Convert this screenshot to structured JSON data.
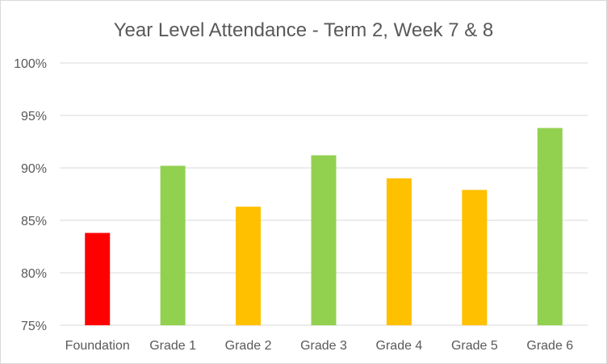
{
  "chart_data": {
    "type": "bar",
    "title": "Year Level Attendance - Term 2, Week 7 & 8",
    "xlabel": "",
    "ylabel": "",
    "categories": [
      "Foundation",
      "Grade 1",
      "Grade 2",
      "Grade 3",
      "Grade 4",
      "Grade 5",
      "Grade 6"
    ],
    "values": [
      83.8,
      90.2,
      86.3,
      91.2,
      89.0,
      87.9,
      93.8
    ],
    "bar_colors": [
      "#ff0000",
      "#92d050",
      "#ffc000",
      "#92d050",
      "#ffc000",
      "#ffc000",
      "#92d050"
    ],
    "ylim": [
      75,
      100
    ],
    "yticks": [
      75,
      80,
      85,
      90,
      95,
      100
    ],
    "ytick_labels": [
      "75%",
      "80%",
      "85%",
      "90%",
      "95%",
      "100%"
    ],
    "grid": true,
    "legend": "none"
  }
}
